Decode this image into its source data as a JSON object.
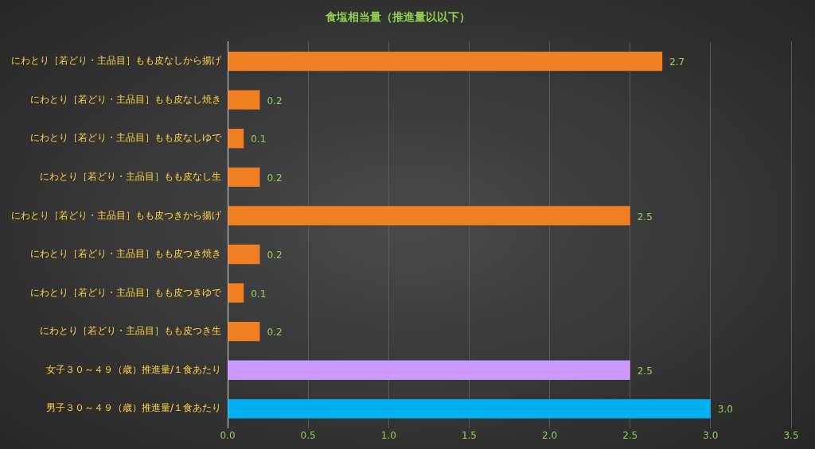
{
  "chart_data": {
    "type": "bar",
    "orientation": "horizontal",
    "title": "食塩相当量（推進量以以下）",
    "categories": [
      "にわとり［若どり・主品目］もも皮なしから揚げ",
      "にわとり［若どり・主品目］もも皮なし焼き",
      "にわとり［若どり・主品目］もも皮なしゆで",
      "にわとり［若どり・主品目］もも皮なし生",
      "にわとり［若どり・主品目］もも皮つきから揚げ",
      "にわとり［若どり・主品目］もも皮つき焼き",
      "にわとり［若どり・主品目］もも皮つきゆで",
      "にわとり［若どり・主品目］もも皮つき生",
      "女子３０～４９（歳）推進量/１食あたり",
      "男子３０～４９（歳）推進量/１食あたり"
    ],
    "values": [
      2.7,
      0.2,
      0.1,
      0.2,
      2.5,
      0.2,
      0.1,
      0.2,
      2.5,
      3.0
    ],
    "value_labels": [
      "2.7",
      "0.2",
      "0.1",
      "0.2",
      "2.5",
      "0.2",
      "0.1",
      "0.2",
      "2.5",
      "3.0"
    ],
    "colors": [
      "#f07f24",
      "#f07f24",
      "#f07f24",
      "#f07f24",
      "#f07f24",
      "#f07f24",
      "#f07f24",
      "#f07f24",
      "#cc99ff",
      "#00b0f0"
    ],
    "xlim": [
      0,
      3.5
    ],
    "xticks": [
      {
        "value": 0,
        "label": "0.0"
      },
      {
        "value": 0.5,
        "label": "0.5"
      },
      {
        "value": 1,
        "label": "1.0"
      },
      {
        "value": 1.5,
        "label": "1.5"
      },
      {
        "value": 2,
        "label": "2.0"
      },
      {
        "value": 2.5,
        "label": "2.5"
      },
      {
        "value": 3,
        "label": "3.0"
      },
      {
        "value": 3.5,
        "label": "3.5"
      }
    ],
    "grid": "x",
    "legend": false
  }
}
